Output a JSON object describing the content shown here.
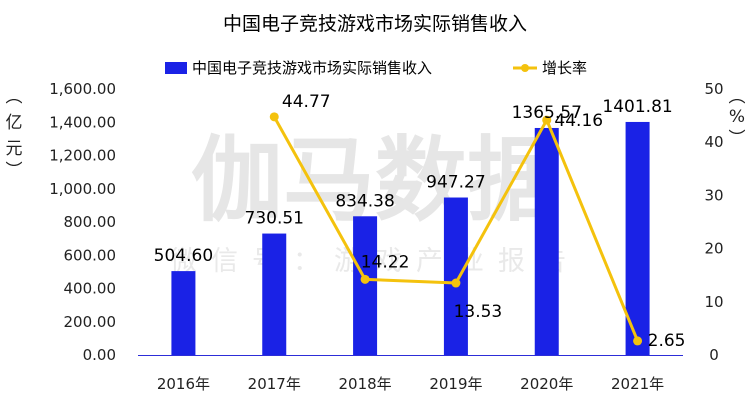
{
  "chart_data": {
    "type": "bar",
    "title": "中国电子竞技游戏市场实际销售收入",
    "categories": [
      "2016年",
      "2017年",
      "2018年",
      "2019年",
      "2020年",
      "2021年"
    ],
    "series": [
      {
        "name": "中国电子竞技游戏市场实际销售收入",
        "type": "bar",
        "axis": "left",
        "color": "#1a22e6",
        "values": [
          504.6,
          730.51,
          834.38,
          947.27,
          1365.57,
          1401.81
        ],
        "labels": [
          "504.60",
          "730.51",
          "834.38",
          "947.27",
          "1365.57",
          "1401.81"
        ]
      },
      {
        "name": "增长率",
        "type": "line",
        "axis": "right",
        "color": "#f4c20d",
        "values": [
          null,
          44.77,
          14.22,
          13.53,
          44.16,
          2.65
        ],
        "labels": [
          "",
          "44.77",
          "14.22",
          "13.53",
          "44.16",
          "2.65"
        ]
      }
    ],
    "ylabel_left": "（亿元）",
    "ylabel_right": "（%）",
    "ylim_left": [
      0,
      1600
    ],
    "yticks_left": [
      "0.00",
      "200.00",
      "400.00",
      "600.00",
      "800.00",
      "1,000.00",
      "1,200.00",
      "1,400.00",
      "1,600.00"
    ],
    "ylim_right": [
      0,
      50
    ],
    "yticks_right": [
      "0",
      "10",
      "20",
      "30",
      "40",
      "50"
    ],
    "grid": false,
    "legend_position": "top"
  },
  "watermark": {
    "main": "伽马数据",
    "sub": "微信号：游戏产业报告"
  }
}
